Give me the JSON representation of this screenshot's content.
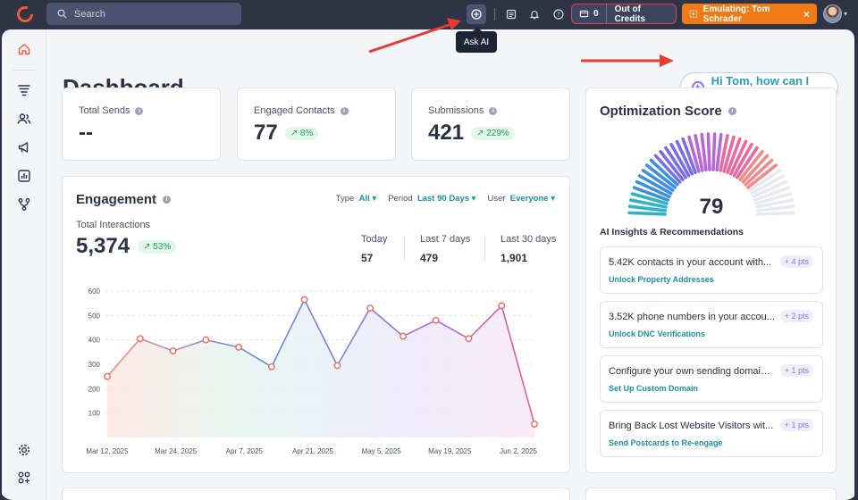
{
  "topbar": {
    "search_placeholder": "Search",
    "credits_count": "0",
    "credits_label": "Out of Credits",
    "emulating_label": "Emulating: Tom Schrader",
    "close_glyph": "×"
  },
  "tooltip": {
    "ask_ai": "Ask AI"
  },
  "page": {
    "title": "Dashboard"
  },
  "assistant": {
    "greeting": "Hi Tom, how can I help?"
  },
  "stats": [
    {
      "label": "Total Sends",
      "value": "--",
      "delta": ""
    },
    {
      "label": "Engaged Contacts",
      "value": "77",
      "delta": "↗ 8%"
    },
    {
      "label": "Submissions",
      "value": "421",
      "delta": "↗ 229%"
    }
  ],
  "engagement": {
    "title": "Engagement",
    "filters": {
      "type_label": "Type",
      "type_value": "All",
      "period_label": "Period",
      "period_value": "Last 90 Days",
      "user_label": "User",
      "user_value": "Everyone"
    },
    "total_label": "Total Interactions",
    "total_value": "5,374",
    "total_delta": "↗ 53%",
    "periods": [
      {
        "label": "Today",
        "value": "57"
      },
      {
        "label": "Last 7 days",
        "value": "479"
      },
      {
        "label": "Last 30 days",
        "value": "1,901"
      }
    ]
  },
  "chart_data": {
    "type": "line",
    "xlabel": "",
    "ylabel": "",
    "ylim": [
      0,
      600
    ],
    "y_ticks": [
      100,
      200,
      300,
      400,
      500,
      600
    ],
    "x_tick_labels": [
      "Mar 12, 2025",
      "Mar 24, 2025",
      "Apr 7, 2025",
      "Apr 21, 2025",
      "May 5, 2025",
      "May 19, 2025",
      "Jun 2, 2025"
    ],
    "series": [
      {
        "values": [
          250,
          405,
          355,
          400,
          370,
          290,
          565,
          295,
          530,
          415,
          480,
          405,
          540,
          55
        ]
      }
    ],
    "grid": true
  },
  "optimization": {
    "title": "Optimization Score",
    "score": "79",
    "score_value": 79,
    "insights_heading": "AI Insights & Recommendations",
    "items": [
      {
        "text": "5.42K contacts in your account with...",
        "action": "Unlock Property Addresses",
        "points": "+ 4 pts"
      },
      {
        "text": "3.52K phone numbers in your accou...",
        "action": "Unlock DNC Verifications",
        "points": "+ 2 pts"
      },
      {
        "text": "Configure your own sending domain ...",
        "action": "Set Up Custom Domain",
        "points": "+ 1 pts"
      },
      {
        "text": "Bring Back Lost Website Visitors wit...",
        "action": "Send Postcards to Re-engage",
        "points": "+ 1 pts"
      }
    ]
  },
  "colors": {
    "accent": "#1b8fa7",
    "brand": "#f07a16",
    "danger": "#d9434b",
    "positive": "#1f9f5a"
  }
}
